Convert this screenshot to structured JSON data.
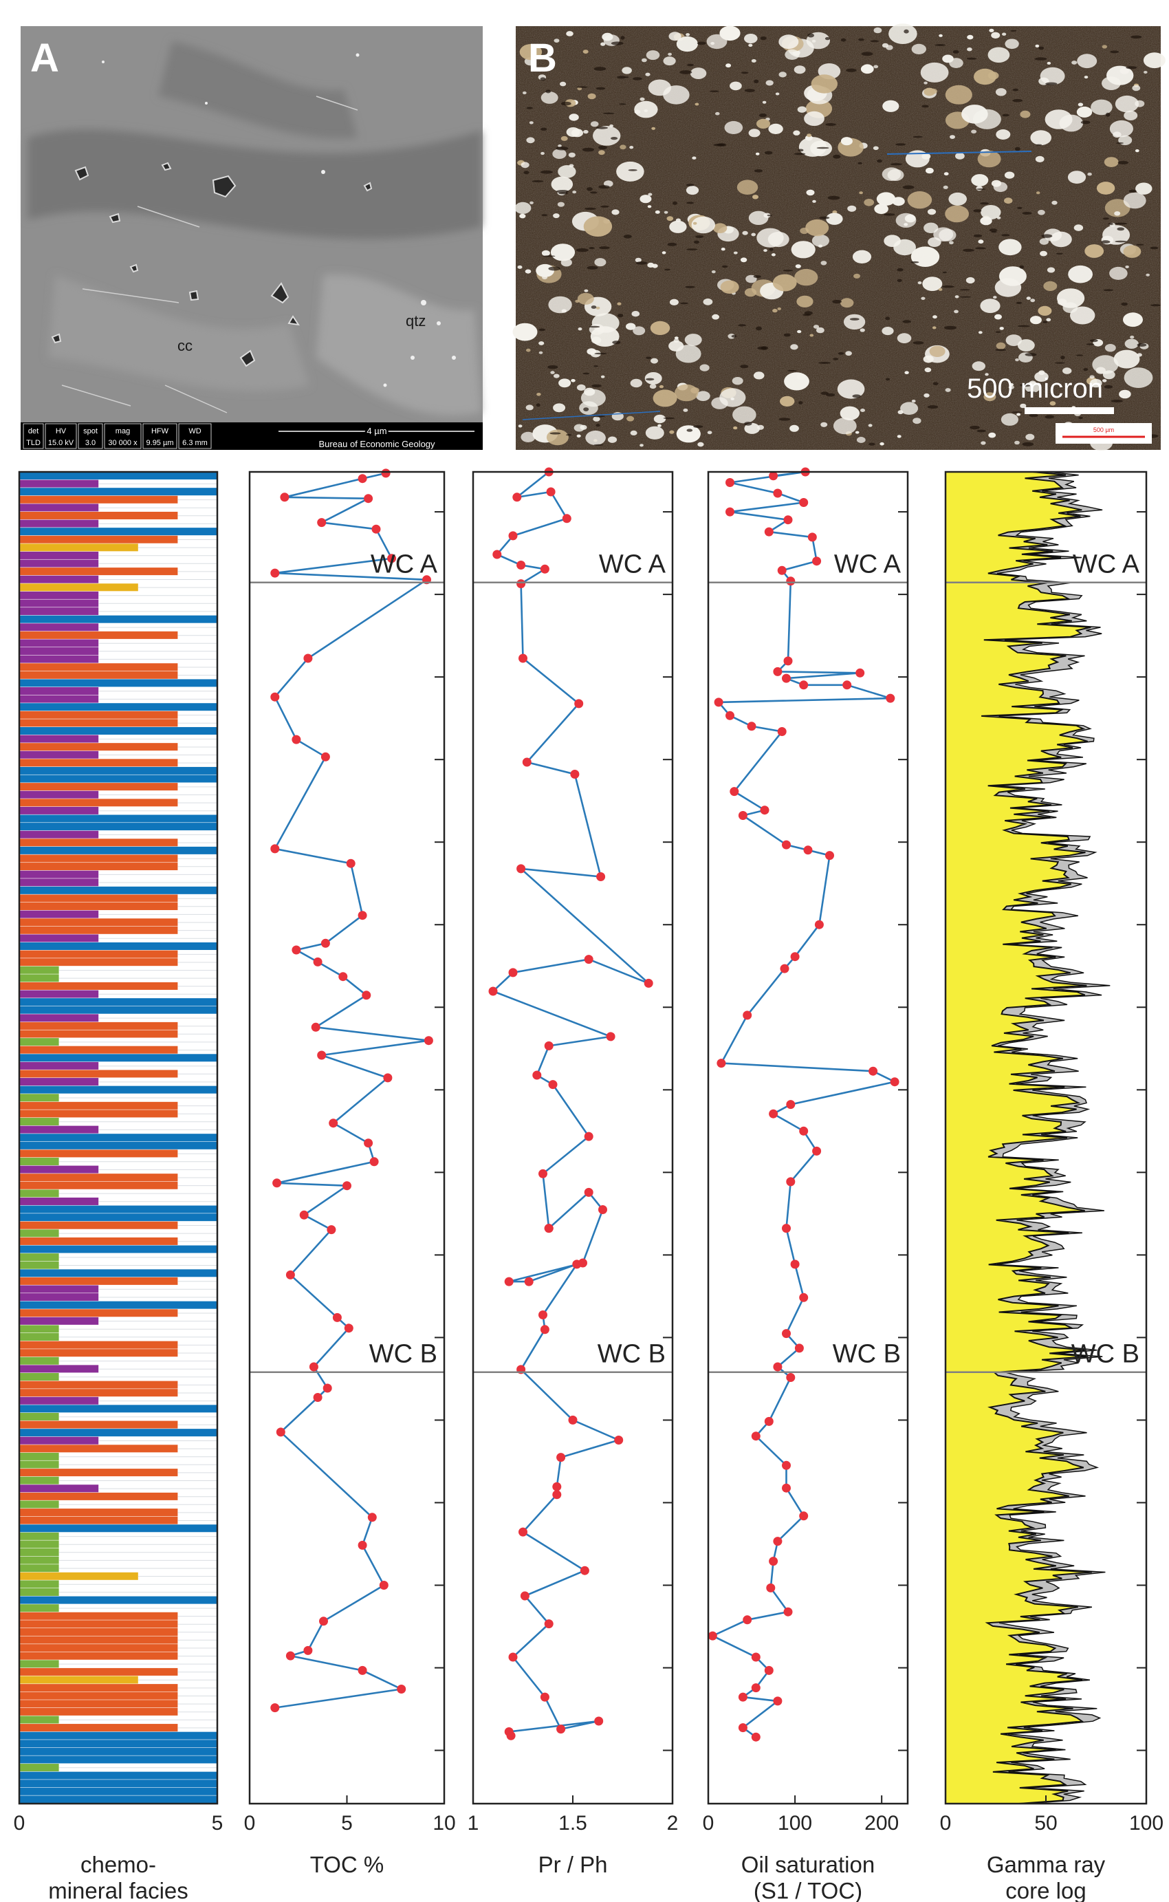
{
  "photo_a": {
    "panel_label": "A",
    "mineral_labels": [
      "cc",
      "qtz"
    ],
    "info_bar": [
      [
        "det",
        "TLD"
      ],
      [
        "HV",
        "15.0 kV"
      ],
      [
        "spot",
        "3.0"
      ],
      [
        "mag",
        "30 000 x"
      ],
      [
        "HFW",
        "9.95 µm"
      ],
      [
        "WD",
        "6.3 mm"
      ]
    ],
    "scale_text": "4 µm",
    "credit": "Bureau of Economic Geology"
  },
  "photo_b": {
    "panel_label": "B",
    "scale_text": "500 micron",
    "small_scale_text": "500 µm"
  },
  "colors": {
    "line": "#2a7ab8",
    "marker": "#e8323c",
    "gamma_fill": "#f5ee3a",
    "gamma_gray": "#c0c0c0",
    "facies_purple": "#8b2f97",
    "facies_blue": "#0f75bb",
    "facies_orange": "#e45b25",
    "facies_green": "#7ab23f",
    "facies_gold": "#e8b21d",
    "zone_line": "#808080"
  },
  "chart_data": [
    {
      "type": "bar",
      "panel": "facies",
      "orientation": "horizontal",
      "xlabel": "chemo-\nmineral facies",
      "xlim": [
        0,
        5
      ],
      "xticks": [
        "0",
        "5"
      ],
      "color_by_value": {
        "1": "green",
        "2": "purple",
        "3": "gold",
        "4": "orange",
        "5": "blue"
      },
      "values_top_to_bottom": [
        5,
        2,
        5,
        4,
        2,
        4,
        2,
        5,
        4,
        3,
        2,
        2,
        4,
        2,
        3,
        2,
        2,
        2,
        5,
        2,
        4,
        2,
        2,
        2,
        4,
        4,
        5,
        2,
        2,
        5,
        4,
        4,
        5,
        2,
        4,
        2,
        4,
        5,
        5,
        4,
        2,
        4,
        2,
        5,
        5,
        2,
        4,
        5,
        4,
        4,
        2,
        2,
        5,
        4,
        4,
        2,
        4,
        4,
        2,
        5,
        4,
        4,
        1,
        1,
        4,
        2,
        5,
        5,
        2,
        4,
        4,
        1,
        4,
        5,
        2,
        4,
        2,
        5,
        1,
        4,
        4,
        1,
        2,
        5,
        5,
        4,
        1,
        2,
        4,
        4,
        1,
        2,
        5,
        5,
        4,
        1,
        4,
        5,
        1,
        1,
        5,
        4,
        2,
        2,
        5,
        4,
        2,
        1,
        1,
        4,
        4,
        1,
        2,
        1,
        4,
        4,
        2,
        5,
        1,
        4,
        5,
        2,
        4,
        1,
        1,
        4,
        1,
        2,
        4,
        1,
        4,
        4,
        5,
        1,
        1,
        1,
        1,
        1,
        3,
        1,
        1,
        5,
        1,
        4,
        4,
        4,
        4,
        4,
        4,
        1,
        4,
        3,
        4,
        4,
        4,
        4,
        1,
        4,
        5,
        5,
        5,
        5,
        1,
        5,
        5,
        5,
        5
      ]
    },
    {
      "type": "line",
      "panel": "toc",
      "xlabel": "TOC %",
      "xlim": [
        0,
        10
      ],
      "xticks": [
        "0",
        "5",
        "10"
      ],
      "points_x_depth": [
        [
          7,
          0.1
        ],
        [
          5.8,
          0.5
        ],
        [
          1.8,
          1.9
        ],
        [
          6.1,
          2.0
        ],
        [
          3.7,
          3.8
        ],
        [
          6.5,
          4.3
        ],
        [
          7.3,
          6.5
        ],
        [
          1.3,
          7.6
        ],
        [
          9.1,
          8.1
        ],
        [
          3,
          14.0
        ],
        [
          1.3,
          16.9
        ],
        [
          2.4,
          20.1
        ],
        [
          3.9,
          21.4
        ],
        [
          1.3,
          28.3
        ],
        [
          5.2,
          29.4
        ],
        [
          5.8,
          33.3
        ],
        [
          3.9,
          35.4
        ],
        [
          2.4,
          35.9
        ],
        [
          3.5,
          36.8
        ],
        [
          4.8,
          37.9
        ],
        [
          6,
          39.3
        ],
        [
          3.4,
          41.7
        ],
        [
          9.2,
          42.7
        ],
        [
          3.7,
          43.8
        ],
        [
          7.1,
          45.5
        ],
        [
          4.3,
          48.9
        ],
        [
          6.1,
          50.4
        ],
        [
          6.4,
          51.8
        ],
        [
          1.4,
          53.4
        ],
        [
          5,
          53.6
        ],
        [
          2.8,
          55.8
        ],
        [
          4.2,
          56.9
        ],
        [
          2.1,
          60.3
        ],
        [
          4.5,
          63.5
        ],
        [
          5.1,
          64.3
        ],
        [
          3.3,
          67.2
        ],
        [
          4,
          68.8
        ],
        [
          3.5,
          69.5
        ],
        [
          1.6,
          72.1
        ],
        [
          6.3,
          78.5
        ],
        [
          5.8,
          80.6
        ],
        [
          6.9,
          83.6
        ],
        [
          3.8,
          86.3
        ],
        [
          3,
          88.5
        ],
        [
          2.1,
          88.9
        ],
        [
          5.8,
          90.0
        ],
        [
          7.8,
          91.4
        ],
        [
          1.3,
          92.8
        ]
      ]
    },
    {
      "type": "line",
      "panel": "prph",
      "xlabel": "Pr / Ph",
      "xlim": [
        1,
        2
      ],
      "xticks": [
        "1",
        "1.5",
        "2"
      ],
      "points_x_depth": [
        [
          1.38,
          0.0
        ],
        [
          1.22,
          1.9
        ],
        [
          1.39,
          1.5
        ],
        [
          1.47,
          3.5
        ],
        [
          1.2,
          4.8
        ],
        [
          1.12,
          6.2
        ],
        [
          1.24,
          7.0
        ],
        [
          1.36,
          7.3
        ],
        [
          1.24,
          8.4
        ],
        [
          1.25,
          14.0
        ],
        [
          1.53,
          17.4
        ],
        [
          1.27,
          21.8
        ],
        [
          1.51,
          22.7
        ],
        [
          1.64,
          30.4
        ],
        [
          1.24,
          29.8
        ],
        [
          1.88,
          38.4
        ],
        [
          1.58,
          36.6
        ],
        [
          1.2,
          37.6
        ],
        [
          1.1,
          39.0
        ],
        [
          1.69,
          42.4
        ],
        [
          1.38,
          43.1
        ],
        [
          1.32,
          45.3
        ],
        [
          1.4,
          46.0
        ],
        [
          1.58,
          49.9
        ],
        [
          1.35,
          52.7
        ],
        [
          1.38,
          56.8
        ],
        [
          1.38,
          56.8
        ],
        [
          1.58,
          54.1
        ],
        [
          1.65,
          55.4
        ],
        [
          1.55,
          59.4
        ],
        [
          1.18,
          60.8
        ],
        [
          1.28,
          60.8
        ],
        [
          1.52,
          59.5
        ],
        [
          1.35,
          63.3
        ],
        [
          1.36,
          64.4
        ],
        [
          1.24,
          67.4
        ],
        [
          1.5,
          71.2
        ],
        [
          1.73,
          72.7
        ],
        [
          1.44,
          74.0
        ],
        [
          1.42,
          76.2
        ],
        [
          1.42,
          76.8
        ],
        [
          1.25,
          79.6
        ],
        [
          1.56,
          82.5
        ],
        [
          1.26,
          84.4
        ],
        [
          1.38,
          86.5
        ],
        [
          1.2,
          89.0
        ],
        [
          1.36,
          92.0
        ],
        [
          1.44,
          94.4
        ],
        [
          1.63,
          93.8
        ],
        [
          1.18,
          94.6
        ],
        [
          1.19,
          94.9
        ]
      ]
    },
    {
      "type": "scatter",
      "panel": "oil",
      "xlabel": "Oil saturation\n(S1 / TOC)",
      "xlim": [
        0,
        230
      ],
      "xticks": [
        "0",
        "100",
        "200"
      ],
      "points_x_depth": [
        [
          75,
          0.3
        ],
        [
          112,
          0.0
        ],
        [
          25,
          0.8
        ],
        [
          80,
          1.6
        ],
        [
          110,
          2.3
        ],
        [
          25,
          3.0
        ],
        [
          92,
          3.6
        ],
        [
          70,
          4.5
        ],
        [
          120,
          4.9
        ],
        [
          125,
          6.7
        ],
        [
          85,
          7.4
        ],
        [
          95,
          8.2
        ],
        [
          92,
          14.2
        ],
        [
          80,
          15.0
        ],
        [
          175,
          15.1
        ],
        [
          90,
          15.5
        ],
        [
          110,
          16.0
        ],
        [
          160,
          16.0
        ],
        [
          210,
          17.0
        ],
        [
          12,
          17.3
        ],
        [
          25,
          18.3
        ],
        [
          50,
          19.1
        ],
        [
          85,
          19.5
        ],
        [
          30,
          24.0
        ],
        [
          65,
          25.4
        ],
        [
          40,
          25.8
        ],
        [
          90,
          28.0
        ],
        [
          115,
          28.4
        ],
        [
          140,
          28.8
        ],
        [
          128,
          34.0
        ],
        [
          100,
          36.4
        ],
        [
          88,
          37.3
        ],
        [
          45,
          40.8
        ],
        [
          15,
          44.4
        ],
        [
          190,
          45.0
        ],
        [
          215,
          45.8
        ],
        [
          95,
          47.5
        ],
        [
          75,
          48.2
        ],
        [
          110,
          49.5
        ],
        [
          125,
          51.0
        ],
        [
          95,
          53.3
        ],
        [
          90,
          56.8
        ],
        [
          100,
          59.5
        ],
        [
          110,
          62.0
        ],
        [
          90,
          64.7
        ],
        [
          105,
          65.8
        ],
        [
          80,
          67.2
        ],
        [
          95,
          68.0
        ],
        [
          70,
          71.3
        ],
        [
          55,
          72.4
        ],
        [
          90,
          74.6
        ],
        [
          90,
          76.3
        ],
        [
          110,
          78.4
        ],
        [
          80,
          80.3
        ],
        [
          75,
          81.8
        ],
        [
          72,
          83.8
        ],
        [
          92,
          85.6
        ],
        [
          45,
          86.2
        ],
        [
          5,
          87.4
        ],
        [
          55,
          89.0
        ],
        [
          70,
          90.0
        ],
        [
          55,
          91.3
        ],
        [
          40,
          92.0
        ],
        [
          80,
          92.3
        ],
        [
          40,
          94.3
        ],
        [
          55,
          95.0
        ]
      ]
    },
    {
      "type": "area",
      "panel": "gamma",
      "xlabel": "Gamma ray\ncore log",
      "xlim": [
        0,
        100
      ],
      "xticks": [
        "0",
        "50",
        "100"
      ]
    }
  ],
  "zones": [
    {
      "name": "WC A",
      "depth": 8.3
    },
    {
      "name": "WC B",
      "depth": 67.6
    }
  ],
  "ylim": [
    0,
    100
  ]
}
